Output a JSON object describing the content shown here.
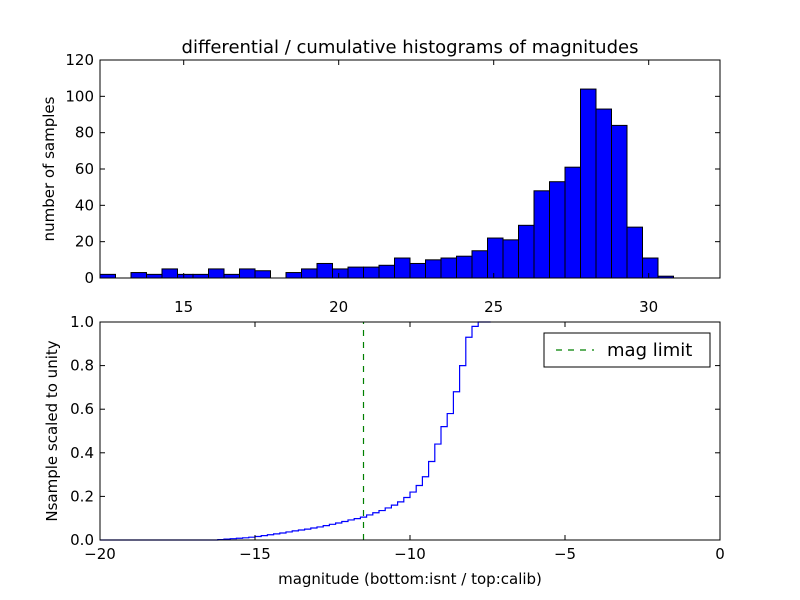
{
  "chart_data": [
    {
      "type": "bar",
      "title": "differential / cumulative histograms of magnitudes",
      "xlabel": "",
      "ylabel": "number of samples",
      "xlim": [
        12.3,
        32.3
      ],
      "ylim": [
        0,
        120
      ],
      "xticks": [
        "15",
        "20",
        "25",
        "30"
      ],
      "xtick_values": [
        15,
        20,
        25,
        30
      ],
      "yticks": [
        "0",
        "20",
        "40",
        "60",
        "80",
        "100",
        "120"
      ],
      "ytick_values": [
        0,
        20,
        40,
        60,
        80,
        100,
        120
      ],
      "x_axis_position": "top",
      "grid": false,
      "bar_color": "#0000ff",
      "bin_start": 12.3,
      "bin_width": 0.5,
      "values": [
        2,
        0,
        3,
        2,
        5,
        2,
        2,
        5,
        2,
        5,
        4,
        0,
        3,
        5,
        8,
        5,
        6,
        6,
        7,
        11,
        8,
        10,
        11,
        12,
        15,
        22,
        21,
        29,
        48,
        53,
        61,
        104,
        93,
        84,
        28,
        11,
        1
      ]
    },
    {
      "type": "line",
      "title": "",
      "xlabel": "magnitude (bottom:isnt / top:calib)",
      "ylabel": "Nsample scaled to unity",
      "xlim": [
        -20,
        0
      ],
      "ylim": [
        0,
        1.0
      ],
      "xticks": [
        "−20",
        "−15",
        "−10",
        "−5",
        "0"
      ],
      "xtick_values": [
        -20,
        -15,
        -10,
        -5,
        0
      ],
      "yticks": [
        "0.0",
        "0.2",
        "0.4",
        "0.6",
        "0.8",
        "1.0"
      ],
      "ytick_values": [
        0,
        0.2,
        0.4,
        0.6,
        0.8,
        1.0
      ],
      "grid": false,
      "legend_position": "top-right",
      "series": [
        {
          "name": "",
          "style": "steps",
          "color": "#0000ff",
          "x": [
            -20,
            -16.2,
            -16.0,
            -15.8,
            -15.6,
            -15.4,
            -15.2,
            -15.0,
            -14.8,
            -14.6,
            -14.4,
            -14.2,
            -14.0,
            -13.8,
            -13.6,
            -13.4,
            -13.2,
            -13.0,
            -12.8,
            -12.6,
            -12.4,
            -12.2,
            -12.0,
            -11.8,
            -11.6,
            -11.4,
            -11.2,
            -11.0,
            -10.8,
            -10.6,
            -10.4,
            -10.2,
            -10.0,
            -9.8,
            -9.6,
            -9.4,
            -9.2,
            -9.0,
            -8.8,
            -8.6,
            -8.4,
            -8.2,
            -8.0,
            -7.8,
            -7.6,
            -7.4
          ],
          "y": [
            0,
            0.002,
            0.004,
            0.006,
            0.008,
            0.01,
            0.013,
            0.016,
            0.02,
            0.024,
            0.028,
            0.032,
            0.037,
            0.042,
            0.046,
            0.05,
            0.055,
            0.06,
            0.066,
            0.072,
            0.078,
            0.085,
            0.092,
            0.098,
            0.105,
            0.115,
            0.125,
            0.135,
            0.147,
            0.16,
            0.175,
            0.195,
            0.22,
            0.25,
            0.29,
            0.36,
            0.44,
            0.52,
            0.58,
            0.68,
            0.8,
            0.93,
            0.98,
            1.0,
            1.0,
            1.0
          ]
        },
        {
          "name": "mag limit",
          "style": "dashed",
          "color": "#008000",
          "x": [
            -11.5,
            -11.5
          ],
          "y": [
            0,
            1.0
          ]
        }
      ]
    }
  ]
}
